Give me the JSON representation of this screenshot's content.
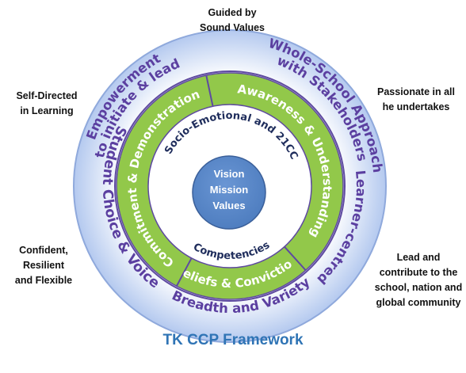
{
  "title": "TK CCP Framework",
  "center": {
    "lines": [
      "Vision",
      "Mission",
      "Values"
    ],
    "fill": "#4f7ec0",
    "stroke": "#3a5f99",
    "text_color": "#ffffff"
  },
  "inner_ring": {
    "top": "Socio-Emotional and 21CC",
    "bottom": "Competencies",
    "color": "#1f2d5c"
  },
  "green_ring": {
    "fill": "#92c84a",
    "text_color": "#ffffff",
    "segments": [
      "Awareness & Understanding",
      "Beliefs & Convictions",
      "Commitment & Demonstration"
    ]
  },
  "outer_ring": {
    "fill": "#b4c9ef",
    "text_color": "#5b3fa0",
    "segments": [
      [
        "Whole-School Approach",
        "with Stakeholders"
      ],
      [
        "Learner-centred"
      ],
      [
        "Breadth and Variety"
      ],
      [
        "Student Choice & Voice"
      ],
      [
        "Empowerment",
        "to initiate & lead"
      ]
    ]
  },
  "side_labels": [
    "Guided by\nSound Values",
    "Passionate in all\nhe undertakes",
    "Lead and\ncontribute to the\nschool, nation and\nglobal community",
    "Confident,\nResilient\nand Flexible",
    "Self-Directed\nin Learning"
  ]
}
